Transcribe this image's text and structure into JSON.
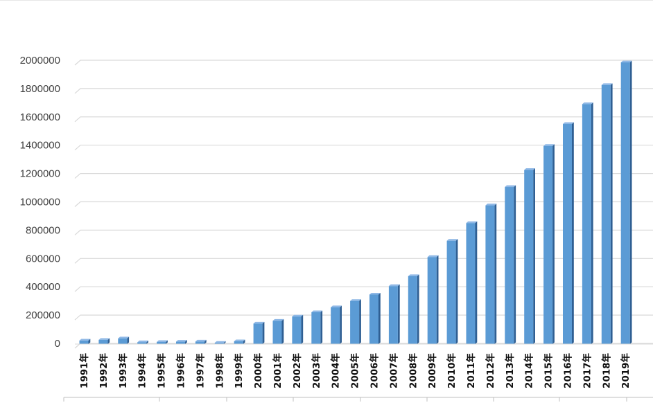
{
  "chart_data": {
    "type": "bar",
    "title": "",
    "xlabel": "",
    "ylabel": "",
    "ylim": [
      0,
      2000000
    ],
    "yticks": [
      0,
      200000,
      400000,
      600000,
      800000,
      1000000,
      1200000,
      1400000,
      1600000,
      1800000,
      2000000
    ],
    "ytick_labels": [
      "0",
      "200000",
      "400000",
      "600000",
      "800000",
      "1000000",
      "1200000",
      "1400000",
      "1600000",
      "1800000",
      "2000000"
    ],
    "grid": true,
    "legend": "none",
    "style": "3d-column",
    "categories": [
      "1991年",
      "1992年",
      "1993年",
      "1994年",
      "1995年",
      "1996年",
      "1997年",
      "1998年",
      "1999年",
      "2000年",
      "2001年",
      "2002年",
      "2003年",
      "2004年",
      "2005年",
      "2006年",
      "2007年",
      "2008年",
      "2009年",
      "2010年",
      "2011年",
      "2012年",
      "2013年",
      "2014年",
      "2015年",
      "2016年",
      "2017年",
      "2018年",
      "2019年"
    ],
    "values": [
      20000,
      25000,
      35000,
      8000,
      10000,
      12000,
      13000,
      4000,
      15000,
      140000,
      160000,
      190000,
      220000,
      255000,
      300000,
      345000,
      405000,
      475000,
      610000,
      725000,
      850000,
      975000,
      1105000,
      1225000,
      1395000,
      1550000,
      1690000,
      1825000,
      1985000
    ],
    "colors": {
      "bar_front": "#5b9bd5",
      "bar_top": "#8fb8e6",
      "bar_side": "#2f5f93",
      "gridline": "#d9d9d9",
      "axis": "#bfbfbf"
    }
  }
}
